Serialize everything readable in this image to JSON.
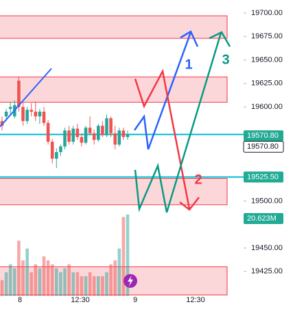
{
  "chart_data": {
    "type": "candlestick",
    "ylim": [
      19713.8,
      19400.4
    ],
    "yticks": [
      {
        "value": 19700,
        "label": "19700.00"
      },
      {
        "value": 19675,
        "label": "19675.00"
      },
      {
        "value": 19650,
        "label": "19650.00"
      },
      {
        "value": 19625,
        "label": "19625.00"
      },
      {
        "value": 19600,
        "label": "19600.00"
      },
      {
        "value": 19500,
        "label": "19500.00"
      },
      {
        "value": 19450,
        "label": "19450.00"
      },
      {
        "value": 19425,
        "label": "19425.00"
      }
    ],
    "xaxis_labels": [
      "8",
      "12:30",
      "9",
      "12:30"
    ],
    "up_color": "#26a69a",
    "down_color": "#ef5350",
    "candles": [
      [
        19585,
        19590,
        19575,
        19580
      ],
      [
        19590,
        19598,
        19585,
        19595
      ],
      [
        19598,
        19605,
        19592,
        19600
      ],
      [
        19590,
        19607,
        19588,
        19602
      ],
      [
        19628,
        19632,
        19595,
        19600
      ],
      [
        19600,
        19605,
        19580,
        19585
      ],
      [
        19585,
        19600,
        19582,
        19597
      ],
      [
        19597,
        19604,
        19590,
        19595
      ],
      [
        19595,
        19606,
        19585,
        19590
      ],
      [
        19590,
        19598,
        19582,
        19595
      ],
      [
        19595,
        19600,
        19580,
        19583
      ],
      [
        19583,
        19586,
        19560,
        19563
      ],
      [
        19563,
        19566,
        19540,
        19545
      ],
      [
        19545,
        19556,
        19535,
        19552
      ],
      [
        19552,
        19560,
        19548,
        19558
      ],
      [
        19558,
        19578,
        19555,
        19575
      ],
      [
        19575,
        19580,
        19560,
        19563
      ],
      [
        19563,
        19580,
        19560,
        19577
      ],
      [
        19577,
        19582,
        19565,
        19568
      ],
      [
        19568,
        19572,
        19558,
        19562
      ],
      [
        19562,
        19580,
        19560,
        19578
      ],
      [
        19578,
        19590,
        19570,
        19572
      ],
      [
        19572,
        19576,
        19560,
        19565
      ],
      [
        19565,
        19582,
        19563,
        19580
      ],
      [
        19580,
        19585,
        19568,
        19570
      ],
      [
        19570,
        19592,
        19568,
        19588
      ],
      [
        19588,
        19590,
        19568,
        19572
      ],
      [
        19572,
        19580,
        19555,
        19560
      ],
      [
        19560,
        19578,
        19558,
        19575
      ],
      [
        19575,
        19578,
        19565,
        19568
      ],
      [
        19568,
        19575,
        19565,
        19571
      ]
    ],
    "volumes": [
      4,
      6,
      8,
      7,
      14,
      9,
      12,
      6,
      8,
      7,
      10,
      9,
      8,
      7,
      6,
      7,
      8,
      6,
      6,
      5,
      5,
      6,
      5,
      5,
      5,
      6,
      8,
      9,
      12,
      20,
      20.623
    ],
    "zones": [
      [
        19697,
        19673
      ],
      [
        19632,
        19605
      ],
      [
        19524,
        19496
      ],
      [
        19430,
        19400
      ]
    ],
    "price_lines": [
      {
        "value": 19570.8,
        "label": "19570.80"
      },
      {
        "value": 19525.5,
        "label": "19525.50"
      }
    ],
    "last_price_label": "19570.80",
    "volume_label": {
      "value": 20.623,
      "label": "20.623M"
    },
    "annotations": [
      "1",
      "2",
      "3"
    ]
  }
}
